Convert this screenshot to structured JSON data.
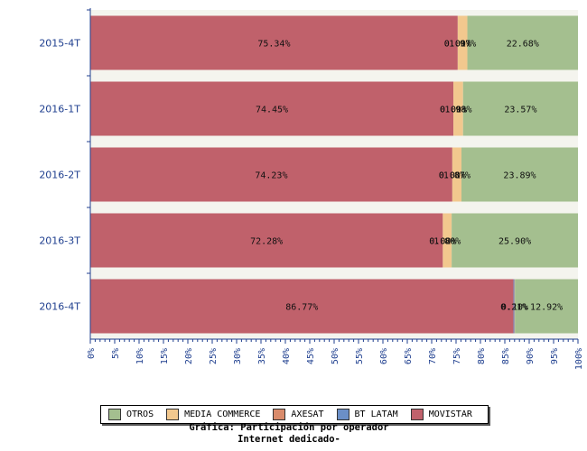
{
  "chart_data": {
    "type": "bar",
    "orientation": "horizontal",
    "stacked": true,
    "caption": [
      "Gráfica: Participación por operador",
      "Internet dedicado-"
    ],
    "categories": [
      "2015-4T",
      "2016-1T",
      "2016-2T",
      "2016-3T",
      "2016-4T"
    ],
    "xlim": [
      0,
      100
    ],
    "x_tick_labels": [
      "0%",
      "5%",
      "10%",
      "15%",
      "20%",
      "25%",
      "30%",
      "35%",
      "40%",
      "45%",
      "50%",
      "55%",
      "60%",
      "65%",
      "70%",
      "75%",
      "80%",
      "85%",
      "90%",
      "95%",
      "100%"
    ],
    "legend_position": "bottom",
    "series": [
      {
        "name": "MOVISTAR",
        "color": "#c0616b",
        "values": [
          75.34,
          74.45,
          74.23,
          72.28,
          86.77
        ],
        "labels": [
          "75.34%",
          "74.45%",
          "74.23%",
          "72.28%",
          "86.77%"
        ]
      },
      {
        "name": "BT LATAM",
        "color": "#6b8fc7",
        "values": [
          0.0,
          0.0,
          0.0,
          0.0,
          0.21
        ],
        "labels": [
          "0.00%",
          "0.00%",
          "0.00%",
          "0.00%",
          "0.21%"
        ]
      },
      {
        "name": "AXESAT",
        "color": "#d98b6b",
        "values": [
          0.01,
          0.01,
          0.01,
          0.02,
          0.1
        ],
        "labels": [
          "0.01%",
          "0.01%",
          "0.01%",
          "0.02%",
          "0.10%"
        ]
      },
      {
        "name": "MEDIA COMMERCE",
        "color": "#f2c88e",
        "values": [
          1.97,
          1.98,
          1.87,
          1.8,
          0.0
        ],
        "labels": [
          "1.97%",
          "1.98%",
          "1.87%",
          "1.80%",
          ""
        ]
      },
      {
        "name": "OTROS",
        "color": "#a4bf8f",
        "values": [
          22.68,
          23.57,
          23.89,
          25.9,
          12.92
        ],
        "labels": [
          "22.68%",
          "23.57%",
          "23.89%",
          "25.90%",
          "12.92%"
        ]
      }
    ],
    "legend_order": [
      "OTROS",
      "MEDIA COMMERCE",
      "AXESAT",
      "BT LATAM",
      "MOVISTAR"
    ]
  }
}
